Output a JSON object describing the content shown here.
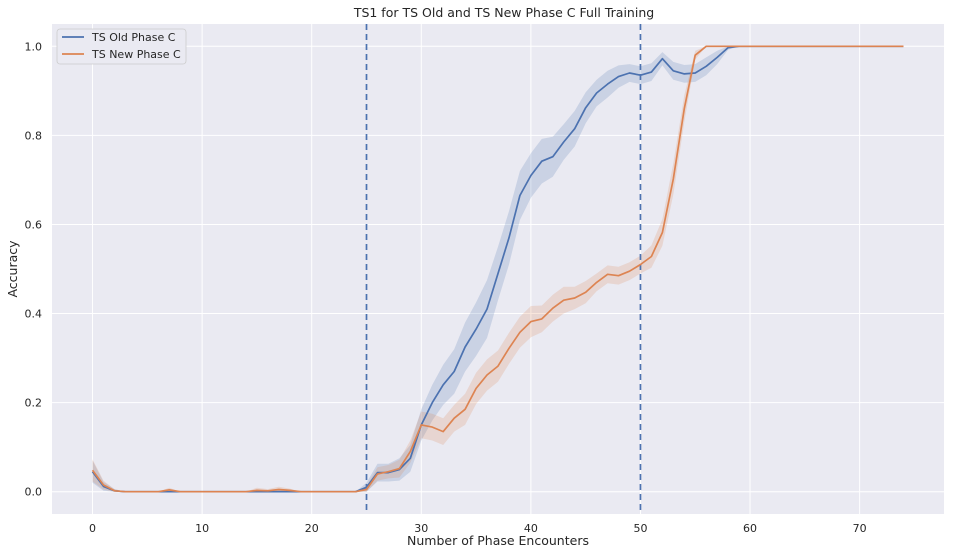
{
  "chart_data": {
    "type": "line",
    "title": "TS1 for TS Old and TS New Phase C Full Training",
    "xlabel": "Number of Phase Encounters",
    "ylabel": "Accuracy",
    "xlim": [
      -3.7,
      77.7
    ],
    "ylim": [
      -0.05,
      1.05
    ],
    "x_ticks": [
      0,
      10,
      20,
      30,
      40,
      50,
      60,
      70
    ],
    "y_ticks": [
      0.0,
      0.2,
      0.4,
      0.6,
      0.8,
      1.0
    ],
    "grid": true,
    "legend_position": "top-left",
    "vlines": [
      {
        "x": 25,
        "color": "#4c72b0",
        "style": "dashed"
      },
      {
        "x": 50,
        "color": "#4c72b0",
        "style": "dashed"
      }
    ],
    "series": [
      {
        "name": "TS Old Phase C",
        "color": "#4c72b0",
        "x": [
          0,
          1,
          2,
          3,
          4,
          5,
          6,
          7,
          8,
          9,
          10,
          11,
          12,
          13,
          14,
          15,
          16,
          17,
          18,
          19,
          20,
          21,
          22,
          23,
          24,
          25,
          26,
          27,
          28,
          29,
          30,
          31,
          32,
          33,
          34,
          35,
          36,
          37,
          38,
          39,
          40,
          41,
          42,
          43,
          44,
          45,
          46,
          47,
          48,
          49,
          50,
          51,
          52,
          53,
          54,
          55,
          56,
          57,
          58,
          59,
          60,
          61,
          62,
          63,
          64,
          65,
          66,
          67,
          68,
          69,
          70,
          71,
          72,
          73,
          74
        ],
        "y": [
          0.045,
          0.012,
          0.002,
          0,
          0,
          0,
          0,
          0,
          0,
          0,
          0,
          0,
          0,
          0,
          0,
          0,
          0,
          0,
          0,
          0,
          0,
          0,
          0,
          0,
          0,
          0.01,
          0.043,
          0.043,
          0.05,
          0.075,
          0.15,
          0.2,
          0.24,
          0.27,
          0.325,
          0.365,
          0.41,
          0.49,
          0.57,
          0.665,
          0.71,
          0.742,
          0.752,
          0.785,
          0.815,
          0.862,
          0.895,
          0.915,
          0.932,
          0.94,
          0.935,
          0.942,
          0.972,
          0.945,
          0.938,
          0.94,
          0.955,
          0.975,
          0.997,
          1,
          1,
          1,
          1,
          1,
          1,
          1,
          1,
          1,
          1,
          1,
          1,
          1,
          1,
          1,
          1
        ],
        "ci_half": [
          0.025,
          0.01,
          0.004,
          0,
          0,
          0,
          0,
          0,
          0,
          0,
          0,
          0,
          0,
          0,
          0,
          0.003,
          0.003,
          0.003,
          0.002,
          0,
          0,
          0,
          0,
          0,
          0,
          0.01,
          0.02,
          0.02,
          0.025,
          0.03,
          0.035,
          0.04,
          0.045,
          0.05,
          0.055,
          0.06,
          0.065,
          0.06,
          0.06,
          0.055,
          0.05,
          0.05,
          0.045,
          0.04,
          0.04,
          0.035,
          0.03,
          0.03,
          0.025,
          0.02,
          0.02,
          0.02,
          0.015,
          0.02,
          0.02,
          0.02,
          0.02,
          0.015,
          0.005,
          0,
          0,
          0,
          0,
          0,
          0,
          0,
          0,
          0,
          0,
          0,
          0,
          0,
          0,
          0,
          0
        ]
      },
      {
        "name": "TS New Phase C",
        "color": "#dd8452",
        "x": [
          0,
          1,
          2,
          3,
          4,
          5,
          6,
          7,
          8,
          9,
          10,
          11,
          12,
          13,
          14,
          15,
          16,
          17,
          18,
          19,
          20,
          21,
          22,
          23,
          24,
          25,
          26,
          27,
          28,
          29,
          30,
          31,
          32,
          33,
          34,
          35,
          36,
          37,
          38,
          39,
          40,
          41,
          42,
          43,
          44,
          45,
          46,
          47,
          48,
          49,
          50,
          51,
          52,
          53,
          54,
          55,
          56,
          57,
          58,
          59,
          60,
          61,
          62,
          63,
          64,
          65,
          66,
          67,
          68,
          69,
          70,
          71,
          72,
          73,
          74
        ],
        "y": [
          0.048,
          0.015,
          0.002,
          0,
          0,
          0,
          0,
          0.004,
          0,
          0,
          0,
          0,
          0,
          0,
          0,
          0.003,
          0.002,
          0.005,
          0.003,
          0,
          0,
          0,
          0,
          0,
          0,
          0.005,
          0.04,
          0.045,
          0.052,
          0.09,
          0.15,
          0.145,
          0.135,
          0.165,
          0.185,
          0.232,
          0.262,
          0.282,
          0.322,
          0.358,
          0.382,
          0.388,
          0.412,
          0.43,
          0.435,
          0.448,
          0.47,
          0.488,
          0.485,
          0.495,
          0.51,
          0.528,
          0.582,
          0.702,
          0.86,
          0.98,
          1,
          1,
          1,
          1,
          1,
          1,
          1,
          1,
          1,
          1,
          1,
          1,
          1,
          1,
          1,
          1,
          1,
          1,
          1
        ],
        "ci_half": [
          0.025,
          0.01,
          0.004,
          0,
          0,
          0,
          0,
          0.005,
          0,
          0,
          0,
          0,
          0,
          0,
          0,
          0.006,
          0.004,
          0.006,
          0.004,
          0,
          0,
          0,
          0,
          0,
          0,
          0.008,
          0.015,
          0.015,
          0.02,
          0.025,
          0.03,
          0.03,
          0.03,
          0.03,
          0.035,
          0.035,
          0.035,
          0.035,
          0.035,
          0.035,
          0.035,
          0.03,
          0.03,
          0.03,
          0.025,
          0.025,
          0.02,
          0.02,
          0.02,
          0.02,
          0.02,
          0.025,
          0.03,
          0.035,
          0.03,
          0.01,
          0,
          0,
          0,
          0,
          0,
          0,
          0,
          0,
          0,
          0,
          0,
          0,
          0,
          0,
          0,
          0,
          0,
          0,
          0
        ]
      }
    ]
  }
}
